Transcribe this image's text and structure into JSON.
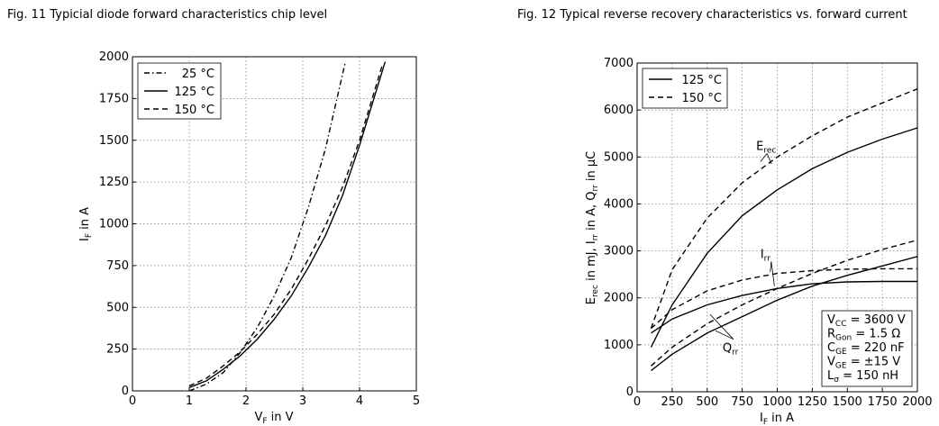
{
  "chart_data": [
    {
      "type": "line",
      "title": "Fig. 11  Typicial diode forward characteristics chip level",
      "xlabel": "V_F in V",
      "ylabel": "I_F in A",
      "xlim": [
        0,
        5
      ],
      "ylim": [
        0,
        2000
      ],
      "xticks": [
        0,
        1,
        2,
        3,
        4,
        5
      ],
      "yticks": [
        0,
        250,
        500,
        750,
        1000,
        1250,
        1500,
        1750,
        2000
      ],
      "grid": true,
      "legend_position": "top-left",
      "series": [
        {
          "name": "25 °C",
          "style": "dashdot",
          "x": [
            1.0,
            1.3,
            1.6,
            1.9,
            2.2,
            2.5,
            2.8,
            3.1,
            3.4,
            3.75
          ],
          "y": [
            0,
            40,
            110,
            230,
            380,
            570,
            800,
            1100,
            1450,
            1970
          ]
        },
        {
          "name": "125 °C",
          "style": "solid",
          "x": [
            1.0,
            1.3,
            1.6,
            1.9,
            2.2,
            2.5,
            2.8,
            3.1,
            3.4,
            3.7,
            4.0,
            4.45
          ],
          "y": [
            20,
            60,
            130,
            210,
            310,
            430,
            570,
            740,
            930,
            1170,
            1470,
            1970
          ]
        },
        {
          "name": "150 °C",
          "style": "dashed",
          "x": [
            1.0,
            1.3,
            1.6,
            1.9,
            2.2,
            2.5,
            2.8,
            3.1,
            3.4,
            3.7,
            4.0,
            4.4
          ],
          "y": [
            30,
            75,
            150,
            235,
            340,
            460,
            610,
            790,
            990,
            1220,
            1500,
            1950
          ]
        }
      ]
    },
    {
      "type": "line",
      "title": "Fig. 12  Typical reverse recovery characteristics vs. forward current",
      "xlabel": "I_F in A",
      "ylabel": "E_rec in mJ, I_rr in A, Q_rr in µC",
      "xlim": [
        0,
        2000
      ],
      "ylim": [
        0,
        7000
      ],
      "xticks": [
        0,
        250,
        500,
        750,
        1000,
        1250,
        1500,
        1750,
        2000
      ],
      "yticks": [
        0,
        1000,
        2000,
        3000,
        4000,
        5000,
        6000,
        7000
      ],
      "grid": true,
      "legend_position": "top-left",
      "legend": [
        {
          "name": "125 °C",
          "style": "solid"
        },
        {
          "name": "150 °C",
          "style": "dashed"
        }
      ],
      "series": [
        {
          "group": "E_rec",
          "temperature": "125 °C",
          "style": "solid",
          "x": [
            100,
            250,
            500,
            750,
            1000,
            1250,
            1500,
            1750,
            2000
          ],
          "y": [
            950,
            1850,
            2950,
            3750,
            4300,
            4750,
            5100,
            5380,
            5620
          ]
        },
        {
          "group": "E_rec",
          "temperature": "150 °C",
          "style": "dashed",
          "x": [
            100,
            250,
            500,
            750,
            1000,
            1250,
            1500,
            1750,
            2000
          ],
          "y": [
            1350,
            2600,
            3700,
            4450,
            5000,
            5450,
            5850,
            6150,
            6450
          ]
        },
        {
          "group": "I_rr",
          "temperature": "125 °C",
          "style": "solid",
          "x": [
            100,
            250,
            500,
            750,
            1000,
            1250,
            1500,
            1750,
            2000
          ],
          "y": [
            1250,
            1550,
            1850,
            2050,
            2200,
            2300,
            2340,
            2350,
            2350
          ]
        },
        {
          "group": "I_rr",
          "temperature": "150 °C",
          "style": "dashed",
          "x": [
            100,
            250,
            500,
            750,
            1000,
            1250,
            1500,
            1750,
            2000
          ],
          "y": [
            1350,
            1750,
            2150,
            2380,
            2520,
            2580,
            2610,
            2620,
            2620
          ]
        },
        {
          "group": "Q_rr",
          "temperature": "125 °C",
          "style": "solid",
          "x": [
            100,
            250,
            500,
            750,
            1000,
            1250,
            1500,
            1750,
            2000
          ],
          "y": [
            450,
            800,
            1250,
            1600,
            1950,
            2250,
            2480,
            2680,
            2880
          ]
        },
        {
          "group": "Q_rr",
          "temperature": "150 °C",
          "style": "dashed",
          "x": [
            100,
            250,
            500,
            750,
            1000,
            1250,
            1500,
            1750,
            2000
          ],
          "y": [
            550,
            950,
            1450,
            1850,
            2200,
            2520,
            2800,
            3030,
            3230
          ]
        }
      ],
      "annotations": [
        {
          "main": "E",
          "sub": "rec",
          "x": 850,
          "y": 5150,
          "pointers": [
            [
              880,
              4900
            ],
            [
              960,
              4850
            ]
          ]
        },
        {
          "main": "I",
          "sub": "rr",
          "x": 880,
          "y": 2850,
          "pointers": [
            [
              950,
              2550
            ],
            [
              980,
              2250
            ]
          ]
        },
        {
          "main": "Q",
          "sub": "rr",
          "x": 610,
          "y": 850,
          "pointers": [
            [
              560,
              1300
            ],
            [
              520,
              1650
            ]
          ]
        }
      ],
      "conditions": [
        {
          "main": "V",
          "sub": "CC",
          "rest": " = 3600 V"
        },
        {
          "main": "R",
          "sub": "Gon",
          "rest": " = 1.5 Ω"
        },
        {
          "main": "C",
          "sub": "GE",
          "rest": " = 220 nF"
        },
        {
          "main": "V",
          "sub": "GE",
          "rest": " = ±15 V"
        },
        {
          "main": "L",
          "sub": "σ",
          "rest": " = 150 nH"
        }
      ]
    }
  ]
}
